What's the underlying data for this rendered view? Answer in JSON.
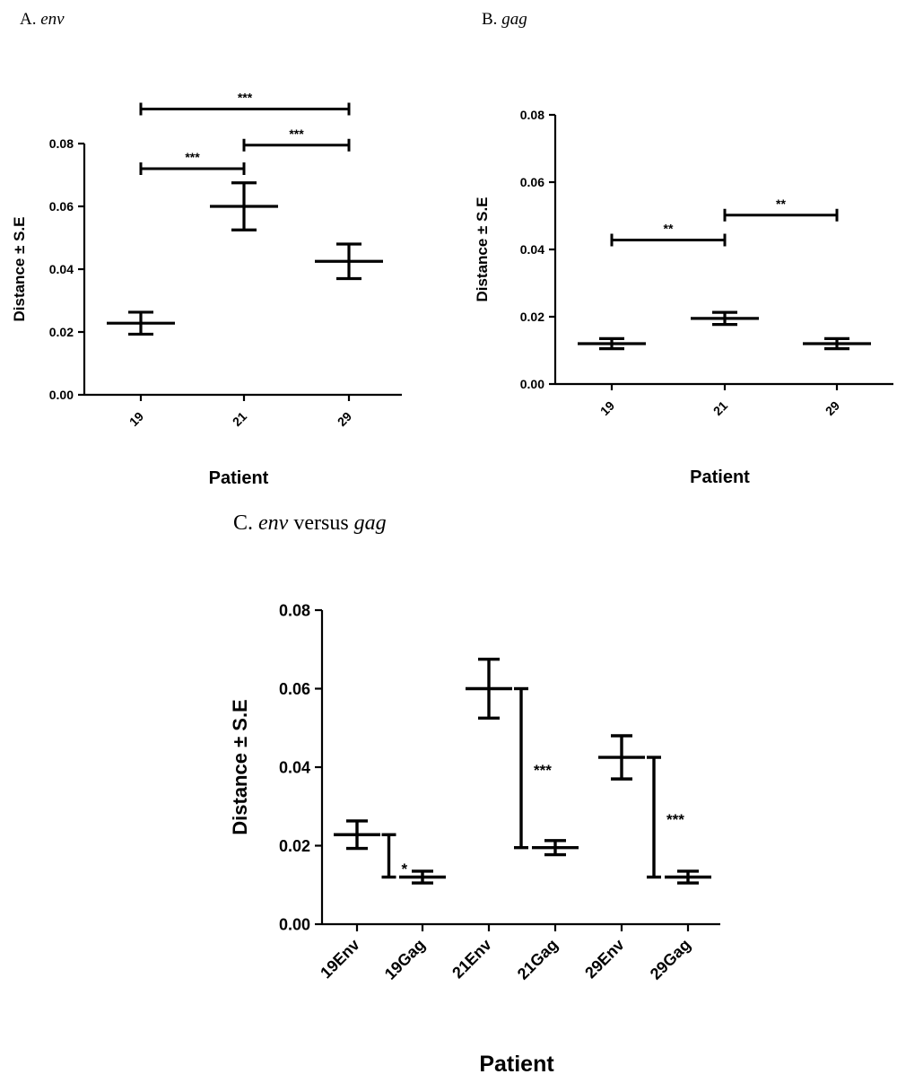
{
  "panels": {
    "a": {
      "letter": "A.",
      "gene": "env",
      "rest": ""
    },
    "b": {
      "letter": "B.",
      "gene": "gag",
      "rest": ""
    },
    "c": {
      "letter": "C.",
      "gene": "env",
      "rest": " versus ",
      "gene2": "gag"
    }
  },
  "chart_data": [
    {
      "id": "A",
      "type": "scatter",
      "title": "",
      "xlabel": "Patient",
      "ylabel": "Distance ± S.E",
      "categories": [
        "19",
        "21",
        "29"
      ],
      "ylim": [
        0,
        0.08
      ],
      "yticks": [
        "0.00",
        "0.02",
        "0.04",
        "0.06",
        "0.08"
      ],
      "series": [
        {
          "mean": [
            0.0228,
            0.06,
            0.0425
          ],
          "se": [
            0.0035,
            0.0075,
            0.0055
          ]
        }
      ],
      "comparisons": [
        {
          "from": "19",
          "to": "21",
          "label": "***",
          "y": 0.072
        },
        {
          "from": "21",
          "to": "29",
          "label": "***",
          "y": 0.0795
        },
        {
          "from": "19",
          "to": "29",
          "label": "***",
          "y": 0.091
        }
      ]
    },
    {
      "id": "B",
      "type": "scatter",
      "title": "",
      "xlabel": "Patient",
      "ylabel": "Distance ± S.E",
      "categories": [
        "19",
        "21",
        "29"
      ],
      "ylim": [
        0,
        0.08
      ],
      "yticks": [
        "0.00",
        "0.02",
        "0.04",
        "0.06",
        "0.08"
      ],
      "series": [
        {
          "mean": [
            0.012,
            0.0195,
            0.012
          ],
          "se": [
            0.0015,
            0.0018,
            0.0015
          ]
        }
      ],
      "comparisons": [
        {
          "from": "19",
          "to": "21",
          "label": "**",
          "y": 0.0428
        },
        {
          "from": "21",
          "to": "29",
          "label": "**",
          "y": 0.0502
        }
      ]
    },
    {
      "id": "C",
      "type": "scatter",
      "title": "",
      "xlabel": "Patient",
      "ylabel": "Distance ± S.E",
      "categories": [
        "19Env",
        "19Gag",
        "21Env",
        "21Gag",
        "29Env",
        "29Gag"
      ],
      "ylim": [
        0,
        0.08
      ],
      "yticks": [
        "0.00",
        "0.02",
        "0.04",
        "0.06",
        "0.08"
      ],
      "series": [
        {
          "mean": [
            0.0228,
            0.012,
            0.06,
            0.0195,
            0.0425,
            0.012
          ],
          "se": [
            0.0035,
            0.0015,
            0.0075,
            0.0018,
            0.0055,
            0.0015
          ]
        }
      ],
      "comparisons": [
        {
          "from": "19Env",
          "to": "19Gag",
          "label": "*",
          "top": 0.0228,
          "bottom": 0.012
        },
        {
          "from": "21Env",
          "to": "21Gag",
          "label": "***",
          "top": 0.06,
          "bottom": 0.0195
        },
        {
          "from": "29Env",
          "to": "29Gag",
          "label": "***",
          "top": 0.0425,
          "bottom": 0.012
        }
      ]
    }
  ]
}
